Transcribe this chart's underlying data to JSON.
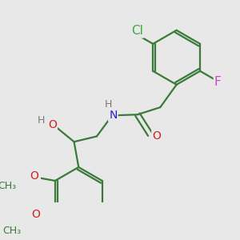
{
  "bg_color": "#e8e8e8",
  "bond_color": "#3a7a3a",
  "atom_colors": {
    "Cl": "#3aaa3a",
    "F": "#cc44cc",
    "O": "#cc2222",
    "N": "#2222cc",
    "H": "#777777",
    "C": "#3a7a3a"
  },
  "bond_width": 1.6,
  "font_size": 10,
  "fig_size": [
    3.0,
    3.0
  ],
  "dpi": 100
}
